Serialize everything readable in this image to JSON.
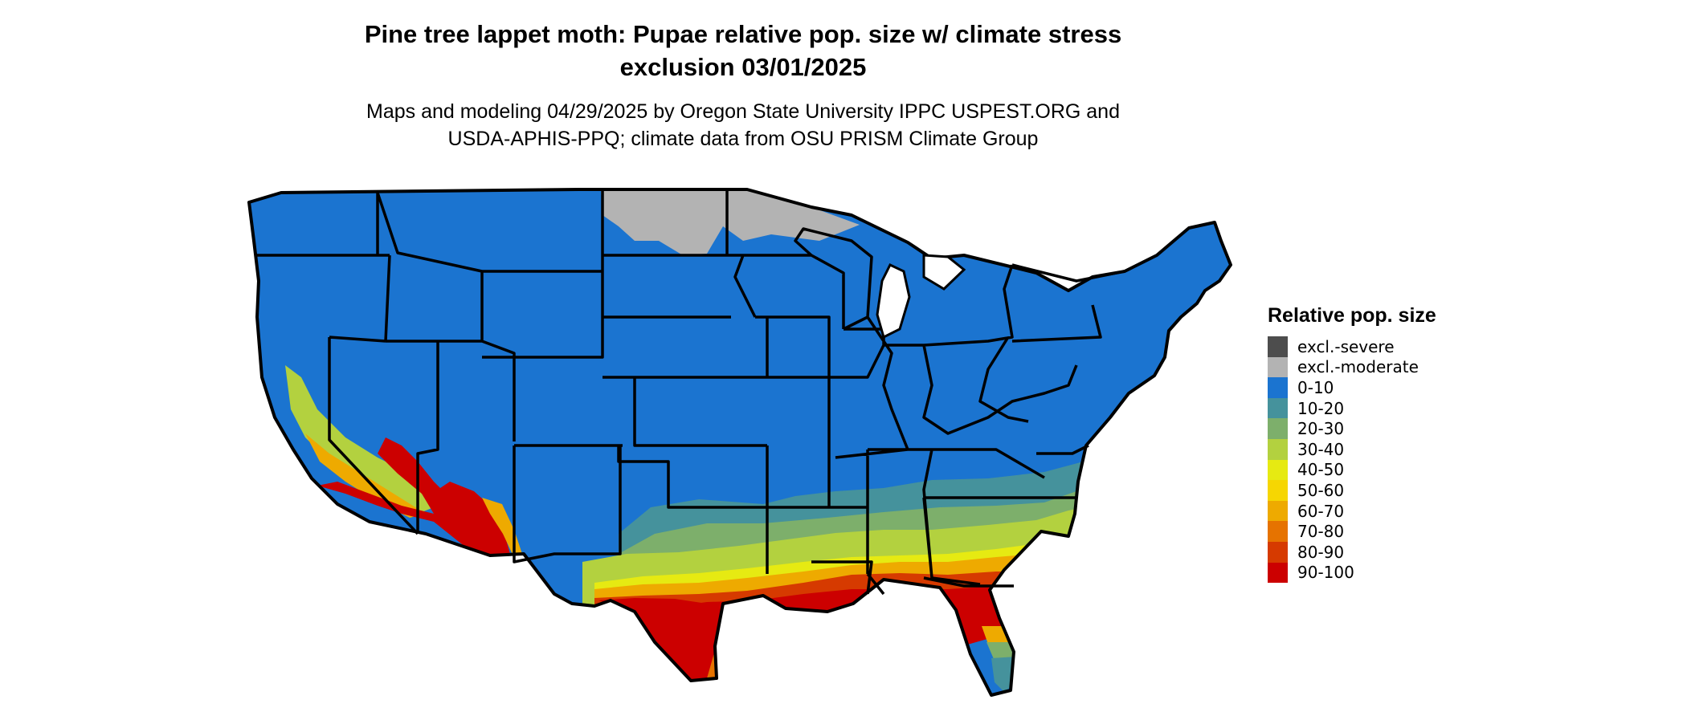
{
  "title_line1": "Pine tree lappet moth: Pupae relative pop. size w/ climate stress",
  "title_line2": "exclusion 03/01/2025",
  "subtitle_line1": "Maps and modeling 04/29/2025 by Oregon State University IPPC USPEST.ORG and",
  "subtitle_line2": "USDA-APHIS-PPQ; climate data from OSU PRISM Climate Group",
  "legend": {
    "title": "Relative pop. size",
    "items": [
      {
        "label": "excl.-severe",
        "color": "#4d4d4d"
      },
      {
        "label": "excl.-moderate",
        "color": "#b3b3b3"
      },
      {
        "label": "0-10",
        "color": "#1b74d0"
      },
      {
        "label": "10-20",
        "color": "#45929c"
      },
      {
        "label": "20-30",
        "color": "#7daf6b"
      },
      {
        "label": "30-40",
        "color": "#b3d13f"
      },
      {
        "label": "40-50",
        "color": "#e6ea12"
      },
      {
        "label": "50-60",
        "color": "#f6d602"
      },
      {
        "label": "60-70",
        "color": "#eeaa00"
      },
      {
        "label": "70-80",
        "color": "#e67300"
      },
      {
        "label": "80-90",
        "color": "#d63a00"
      },
      {
        "label": "90-100",
        "color": "#cc0000"
      }
    ]
  }
}
